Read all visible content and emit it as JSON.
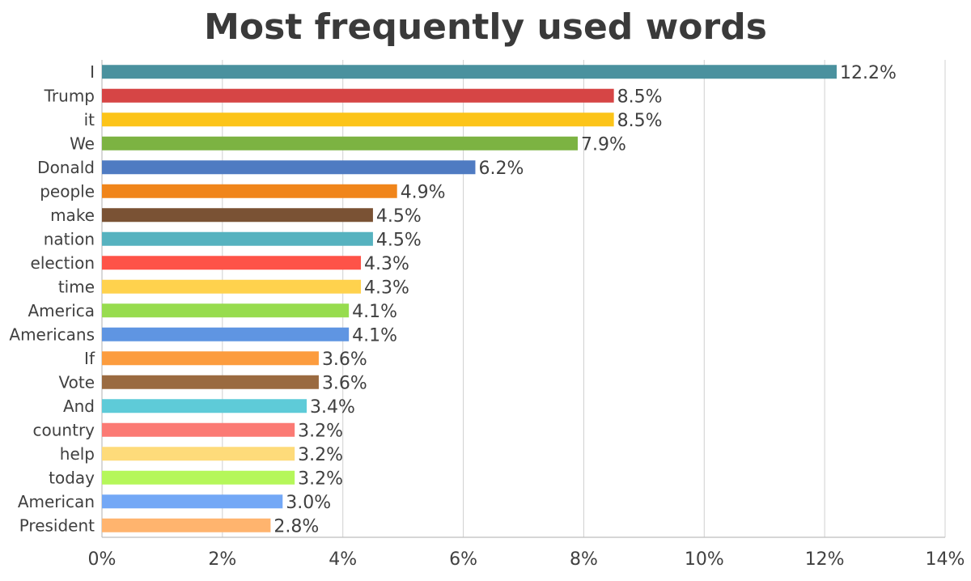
{
  "chart_data": {
    "type": "bar",
    "orientation": "horizontal",
    "title": "Most frequently used words",
    "xlabel": "",
    "ylabel": "",
    "xlim": [
      0,
      14
    ],
    "x_ticks": [
      0,
      2,
      4,
      6,
      8,
      10,
      12,
      14
    ],
    "tick_suffix": "%",
    "grid": "vertical",
    "categories": [
      "I",
      "Trump",
      "it",
      "We",
      "Donald",
      "people",
      "make",
      "nation",
      "election",
      "time",
      "America",
      "Americans",
      "If",
      "Vote",
      "And",
      "country",
      "help",
      "today",
      "American",
      "President"
    ],
    "values": [
      12.2,
      8.5,
      8.5,
      7.9,
      6.2,
      4.9,
      4.5,
      4.5,
      4.3,
      4.3,
      4.1,
      4.1,
      3.6,
      3.6,
      3.4,
      3.2,
      3.2,
      3.2,
      3.0,
      2.8
    ],
    "value_labels": [
      "12.2%",
      "8.5%",
      "8.5%",
      "7.9%",
      "6.2%",
      "4.9%",
      "4.5%",
      "4.5%",
      "4.3%",
      "4.3%",
      "4.1%",
      "4.1%",
      "3.6%",
      "3.6%",
      "3.4%",
      "3.2%",
      "3.2%",
      "3.2%",
      "3.0%",
      "2.8%"
    ],
    "colors": [
      "#4a919e",
      "#d64545",
      "#fcc419",
      "#7cb342",
      "#4f7bc2",
      "#f0851a",
      "#7a5234",
      "#56b2bf",
      "#fe5348",
      "#ffd24d",
      "#97dc4e",
      "#5f95e2",
      "#fc9c3e",
      "#9a6a40",
      "#5ecbd8",
      "#fb7a74",
      "#fedb7a",
      "#b5f75a",
      "#73a8f6",
      "#ffb46e"
    ]
  }
}
